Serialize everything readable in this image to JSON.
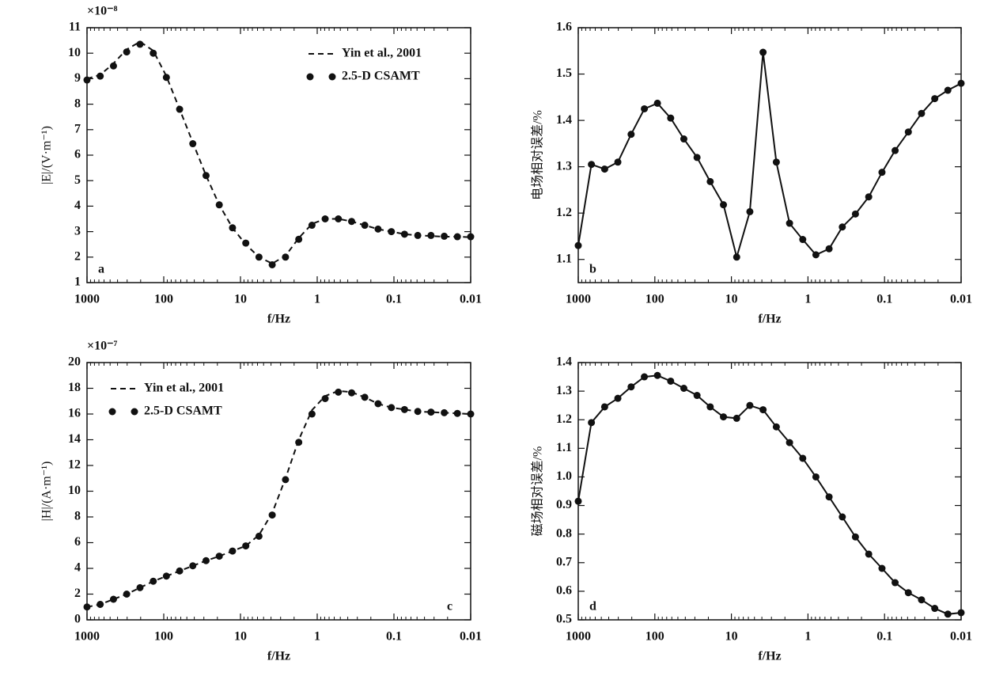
{
  "chart_data": [
    {
      "type": "line",
      "log_x": true,
      "xlim": [
        1000,
        0.01
      ],
      "xticks": [
        1000,
        100,
        10,
        1,
        0.1,
        0.01
      ],
      "ylim": [
        1,
        11
      ],
      "yticks": [
        1,
        2,
        3,
        4,
        5,
        6,
        7,
        8,
        9,
        10,
        11
      ],
      "xlabel": "f/Hz",
      "ylabel": "|E|/(V·m⁻¹)",
      "offset_label": "×10⁻⁸",
      "annotation": "a",
      "annotation_position": "lower left",
      "legend": "upper right",
      "x": [
        1000,
        673,
        452,
        304,
        204,
        137,
        92.4,
        62.1,
        41.8,
        28.1,
        18.9,
        12.7,
        8.53,
        5.74,
        3.86,
        2.59,
        1.74,
        1.17,
        0.788,
        0.53,
        0.356,
        0.24,
        0.161,
        0.108,
        0.0728,
        0.0489,
        0.0329,
        0.0221,
        0.0149,
        0.01
      ],
      "series": [
        {
          "name": "Yin et al., 2001",
          "color": "#111111",
          "style": "dashed",
          "values": [
            9.0,
            9.15,
            9.6,
            10.15,
            10.45,
            10.1,
            9.1,
            7.8,
            6.5,
            5.2,
            4.05,
            3.15,
            2.5,
            2.0,
            1.75,
            2.05,
            2.75,
            3.3,
            3.5,
            3.5,
            3.4,
            3.25,
            3.1,
            3.0,
            2.9,
            2.85,
            2.83,
            2.8,
            2.8,
            2.78
          ]
        },
        {
          "name": "2.5-D CSAMT",
          "color": "#111111",
          "style": "markers",
          "values": [
            8.95,
            9.1,
            9.5,
            10.05,
            10.35,
            10.0,
            9.05,
            7.8,
            6.45,
            5.2,
            4.05,
            3.15,
            2.55,
            2.0,
            1.7,
            2.0,
            2.7,
            3.25,
            3.5,
            3.5,
            3.4,
            3.25,
            3.1,
            3.0,
            2.9,
            2.85,
            2.85,
            2.82,
            2.8,
            2.8
          ]
        }
      ]
    },
    {
      "type": "line",
      "log_x": true,
      "xlim": [
        1000,
        0.01
      ],
      "xticks": [
        1000,
        100,
        10,
        1,
        0.1,
        0.01
      ],
      "ylim": [
        1.05,
        1.6
      ],
      "yticks": [
        1.1,
        1.2,
        1.3,
        1.4,
        1.5,
        1.6
      ],
      "xlabel": "f/Hz",
      "ylabel": "电场相对误差/%",
      "annotation": "b",
      "annotation_position": "lower left",
      "x": [
        1000,
        673,
        452,
        304,
        204,
        137,
        92.4,
        62.1,
        41.8,
        28.1,
        18.9,
        12.7,
        8.53,
        5.74,
        3.86,
        2.59,
        1.74,
        1.17,
        0.788,
        0.53,
        0.356,
        0.24,
        0.161,
        0.108,
        0.0728,
        0.0489,
        0.0329,
        0.0221,
        0.0149,
        0.01
      ],
      "series": [
        {
          "color": "#111111",
          "style": "line-markers",
          "values": [
            1.13,
            1.305,
            1.295,
            1.31,
            1.37,
            1.425,
            1.437,
            1.405,
            1.36,
            1.32,
            1.268,
            1.218,
            1.105,
            1.203,
            1.547,
            1.31,
            1.178,
            1.143,
            1.11,
            1.123,
            1.17,
            1.198,
            1.235,
            1.288,
            1.335,
            1.375,
            1.415,
            1.447,
            1.465,
            1.48
          ]
        }
      ]
    },
    {
      "type": "line",
      "log_x": true,
      "xlim": [
        1000,
        0.01
      ],
      "xticks": [
        1000,
        100,
        10,
        1,
        0.1,
        0.01
      ],
      "ylim": [
        0,
        20
      ],
      "yticks": [
        0,
        2,
        4,
        6,
        8,
        10,
        12,
        14,
        16,
        18,
        20
      ],
      "xlabel": "f/Hz",
      "ylabel": "|H|/(A·m⁻¹)",
      "offset_label": "×10⁻⁷",
      "annotation": "c",
      "annotation_position": "lower right",
      "legend": "upper left",
      "x": [
        1000,
        673,
        452,
        304,
        204,
        137,
        92.4,
        62.1,
        41.8,
        28.1,
        18.9,
        12.7,
        8.53,
        5.74,
        3.86,
        2.59,
        1.74,
        1.17,
        0.788,
        0.53,
        0.356,
        0.24,
        0.161,
        0.108,
        0.0728,
        0.0489,
        0.0329,
        0.0221,
        0.0149,
        0.01
      ],
      "series": [
        {
          "name": "Yin et al., 2001",
          "color": "#111111",
          "style": "dashed",
          "values": [
            1.0,
            1.2,
            1.6,
            2.0,
            2.5,
            3.0,
            3.4,
            3.8,
            4.2,
            4.6,
            4.95,
            5.35,
            5.75,
            6.6,
            8.3,
            11.0,
            14.0,
            16.3,
            17.4,
            17.8,
            17.7,
            17.3,
            16.8,
            16.5,
            16.35,
            16.2,
            16.15,
            16.1,
            16.05,
            16.0
          ]
        },
        {
          "name": "2.5-D CSAMT",
          "color": "#111111",
          "style": "markers",
          "values": [
            1.0,
            1.2,
            1.6,
            2.0,
            2.5,
            3.0,
            3.4,
            3.8,
            4.2,
            4.6,
            4.95,
            5.35,
            5.75,
            6.5,
            8.15,
            10.9,
            13.8,
            16.0,
            17.2,
            17.7,
            17.65,
            17.3,
            16.8,
            16.5,
            16.35,
            16.2,
            16.15,
            16.1,
            16.05,
            16.0
          ]
        }
      ]
    },
    {
      "type": "line",
      "log_x": true,
      "xlim": [
        1000,
        0.01
      ],
      "xticks": [
        1000,
        100,
        10,
        1,
        0.1,
        0.01
      ],
      "ylim": [
        0.5,
        1.4
      ],
      "yticks": [
        0.5,
        0.6,
        0.7,
        0.8,
        0.9,
        {
          "value": 1,
          "label": "1.0"
        },
        1.1,
        1.2,
        1.3,
        1.4
      ],
      "xlabel": "f/Hz",
      "ylabel": "磁场相对误差/%",
      "annotation": "d",
      "annotation_position": "lower left",
      "x": [
        1000,
        673,
        452,
        304,
        204,
        137,
        92.4,
        62.1,
        41.8,
        28.1,
        18.9,
        12.7,
        8.53,
        5.74,
        3.86,
        2.59,
        1.74,
        1.17,
        0.788,
        0.53,
        0.356,
        0.24,
        0.161,
        0.108,
        0.0728,
        0.0489,
        0.0329,
        0.0221,
        0.0149,
        0.01
      ],
      "series": [
        {
          "color": "#111111",
          "style": "line-markers",
          "values": [
            0.915,
            1.19,
            1.245,
            1.275,
            1.315,
            1.35,
            1.355,
            1.335,
            1.31,
            1.285,
            1.245,
            1.21,
            1.205,
            1.25,
            1.235,
            1.175,
            1.12,
            1.065,
            1.0,
            0.93,
            0.86,
            0.79,
            0.73,
            0.68,
            0.63,
            0.595,
            0.57,
            0.54,
            0.52,
            0.525
          ]
        }
      ]
    }
  ]
}
